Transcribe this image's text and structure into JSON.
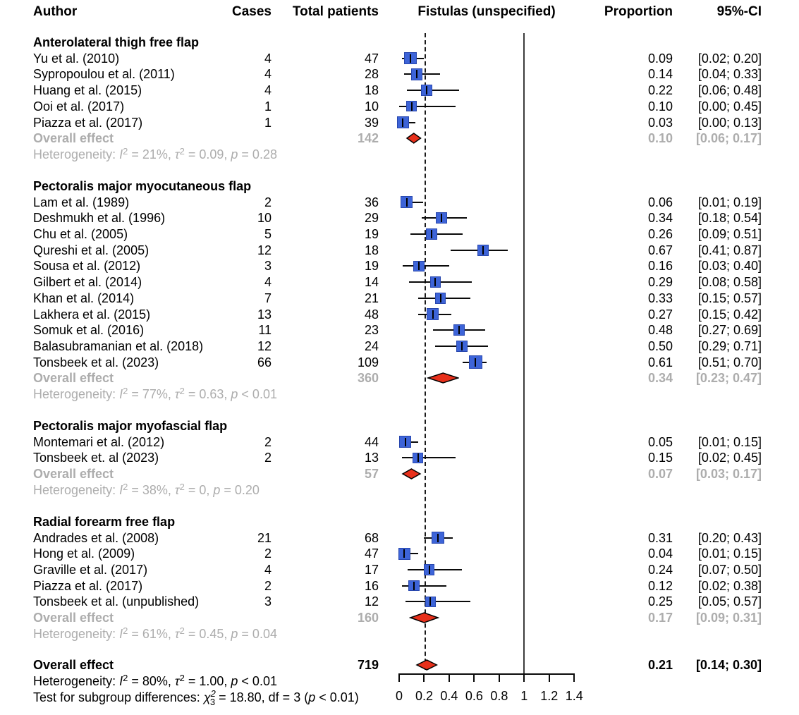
{
  "columns": {
    "author": "Author",
    "cases": "Cases",
    "total": "Total patients",
    "plot_title": "Fistulas (unspecified)",
    "proportion": "Proportion",
    "ci": "95%-CI"
  },
  "colors": {
    "square_fill": "#3D64D8",
    "square_border": "#2847AE",
    "diamond_fill": "#E8301B",
    "diamond_border": "#000000",
    "muted_text": "#adadad",
    "axis": "#0a0a0a",
    "reference_line": "#3c3c3c"
  },
  "chart_data": {
    "type": "forest",
    "title": "Fistulas (unspecified)",
    "x_axis": {
      "tick_labels": [
        "0",
        "0.2",
        "0.4",
        "0.6",
        "0.8",
        "1",
        "1.2",
        "1.4"
      ],
      "tick_values": [
        0,
        0.2,
        0.4,
        0.6,
        0.8,
        1,
        1.2,
        1.4
      ],
      "range": [
        0,
        1.4
      ],
      "dashed_line_at": 0.21,
      "solid_line_at": 1
    },
    "groups": [
      {
        "name": "Anterolateral thigh free flap",
        "studies": [
          {
            "author": "Yu et al. (2010)",
            "cases": "4",
            "total": 47,
            "proportion": 0.09,
            "ci_lower": 0.02,
            "ci_upper": 0.2,
            "proportion_label": "0.09",
            "ci_label": "[0.02; 0.20]"
          },
          {
            "author": "Sypropoulou et al. (2011)",
            "cases": "4",
            "total": 28,
            "proportion": 0.14,
            "ci_lower": 0.04,
            "ci_upper": 0.33,
            "proportion_label": "0.14",
            "ci_label": "[0.04; 0.33]"
          },
          {
            "author": "Huang et al. (2015)",
            "cases": "4",
            "total": 18,
            "proportion": 0.22,
            "ci_lower": 0.06,
            "ci_upper": 0.48,
            "proportion_label": "0.22",
            "ci_label": "[0.06; 0.48]"
          },
          {
            "author": "Ooi et al. (2017)",
            "cases": "1",
            "total": 10,
            "proportion": 0.1,
            "ci_lower": 0.0,
            "ci_upper": 0.45,
            "proportion_label": "0.10",
            "ci_label": "[0.00; 0.45]"
          },
          {
            "author": "Piazza et al. (2017)",
            "cases": "1",
            "total": 39,
            "proportion": 0.03,
            "ci_lower": 0.0,
            "ci_upper": 0.13,
            "proportion_label": "0.03",
            "ci_label": "[0.00; 0.13]"
          }
        ],
        "overall": {
          "label": "Overall effect",
          "total": "142",
          "proportion": 0.1,
          "ci_lower": 0.06,
          "ci_upper": 0.17,
          "proportion_label": "0.10",
          "ci_label": "[0.06; 0.17]"
        },
        "heterogeneity": [
          [
            "Heterogeneity: "
          ],
          [
            "I",
            "i"
          ],
          [
            "2",
            "sup"
          ],
          [
            " = 21%, "
          ],
          [
            "τ",
            "i"
          ],
          [
            "2",
            "sup"
          ],
          [
            " = 0.09, "
          ],
          [
            "p",
            "i"
          ],
          [
            " = 0.28"
          ]
        ]
      },
      {
        "name": "Pectoralis major myocutaneous flap",
        "studies": [
          {
            "author": "Lam et al. (1989)",
            "cases": "2",
            "total": 36,
            "proportion": 0.06,
            "ci_lower": 0.01,
            "ci_upper": 0.19,
            "proportion_label": "0.06",
            "ci_label": "[0.01; 0.19]"
          },
          {
            "author": "Deshmukh et al. (1996)",
            "cases": "10",
            "total": 29,
            "proportion": 0.34,
            "ci_lower": 0.18,
            "ci_upper": 0.54,
            "proportion_label": "0.34",
            "ci_label": "[0.18; 0.54]"
          },
          {
            "author": "Chu et al. (2005)",
            "cases": "5",
            "total": 19,
            "proportion": 0.26,
            "ci_lower": 0.09,
            "ci_upper": 0.51,
            "proportion_label": "0.26",
            "ci_label": "[0.09; 0.51]"
          },
          {
            "author": "Qureshi et al. (2005)",
            "cases": "12",
            "total": 18,
            "proportion": 0.67,
            "ci_lower": 0.41,
            "ci_upper": 0.87,
            "proportion_label": "0.67",
            "ci_label": "[0.41; 0.87]"
          },
          {
            "author": "Sousa et al. (2012)",
            "cases": "3",
            "total": 19,
            "proportion": 0.16,
            "ci_lower": 0.03,
            "ci_upper": 0.4,
            "proportion_label": "0.16",
            "ci_label": "[0.03; 0.40]"
          },
          {
            "author": "Gilbert et al. (2014)",
            "cases": "4",
            "total": 14,
            "proportion": 0.29,
            "ci_lower": 0.08,
            "ci_upper": 0.58,
            "proportion_label": "0.29",
            "ci_label": "[0.08; 0.58]"
          },
          {
            "author": "Khan et al. (2014)",
            "cases": "7",
            "total": 21,
            "proportion": 0.33,
            "ci_lower": 0.15,
            "ci_upper": 0.57,
            "proportion_label": "0.33",
            "ci_label": "[0.15; 0.57]"
          },
          {
            "author": "Lakhera et al. (2015)",
            "cases": "13",
            "total": 48,
            "proportion": 0.27,
            "ci_lower": 0.15,
            "ci_upper": 0.42,
            "proportion_label": "0.27",
            "ci_label": "[0.15; 0.42]"
          },
          {
            "author": "Somuk et al. (2016)",
            "cases": "11",
            "total": 23,
            "proportion": 0.48,
            "ci_lower": 0.27,
            "ci_upper": 0.69,
            "proportion_label": "0.48",
            "ci_label": "[0.27; 0.69]"
          },
          {
            "author": "Balasubramanian et al. (2018)",
            "cases": "12",
            "total": 24,
            "proportion": 0.5,
            "ci_lower": 0.29,
            "ci_upper": 0.71,
            "proportion_label": "0.50",
            "ci_label": "[0.29; 0.71]"
          },
          {
            "author": "Tonsbeek et al. (2023)",
            "cases": "66",
            "total": 109,
            "proportion": 0.61,
            "ci_lower": 0.51,
            "ci_upper": 0.7,
            "proportion_label": "0.61",
            "ci_label": "[0.51; 0.70]"
          }
        ],
        "overall": {
          "label": "Overall effect",
          "total": "360",
          "proportion": 0.34,
          "ci_lower": 0.23,
          "ci_upper": 0.47,
          "proportion_label": "0.34",
          "ci_label": "[0.23; 0.47]"
        },
        "heterogeneity": [
          [
            "Heterogeneity: "
          ],
          [
            "I",
            "i"
          ],
          [
            "2",
            "sup"
          ],
          [
            " = 77%, "
          ],
          [
            "τ",
            "i"
          ],
          [
            "2",
            "sup"
          ],
          [
            " = 0.63, "
          ],
          [
            "p",
            "i"
          ],
          [
            " < 0.01"
          ]
        ]
      },
      {
        "name": "Pectoralis major myofascial flap",
        "studies": [
          {
            "author": "Montemari et al. (2012)",
            "cases": "2",
            "total": 44,
            "proportion": 0.05,
            "ci_lower": 0.01,
            "ci_upper": 0.15,
            "proportion_label": "0.05",
            "ci_label": "[0.01; 0.15]"
          },
          {
            "author": "Tonsbeek et. al (2023)",
            "cases": "2",
            "total": 13,
            "proportion": 0.15,
            "ci_lower": 0.02,
            "ci_upper": 0.45,
            "proportion_label": "0.15",
            "ci_label": "[0.02; 0.45]"
          }
        ],
        "overall": {
          "label": "Overall effect",
          "total": "57",
          "proportion": 0.07,
          "ci_lower": 0.03,
          "ci_upper": 0.17,
          "proportion_label": "0.07",
          "ci_label": "[0.03; 0.17]"
        },
        "heterogeneity": [
          [
            "Heterogeneity: "
          ],
          [
            "I",
            "i"
          ],
          [
            "2",
            "sup"
          ],
          [
            " = 38%, "
          ],
          [
            "τ",
            "i"
          ],
          [
            "2",
            "sup"
          ],
          [
            " = 0, "
          ],
          [
            "p",
            "i"
          ],
          [
            " = 0.20"
          ]
        ]
      },
      {
        "name": "Radial forearm free flap",
        "studies": [
          {
            "author": "Andrades et al. (2008)",
            "cases": "21",
            "total": 68,
            "proportion": 0.31,
            "ci_lower": 0.2,
            "ci_upper": 0.43,
            "proportion_label": "0.31",
            "ci_label": "[0.20; 0.43]"
          },
          {
            "author": "Hong et al. (2009)",
            "cases": "2",
            "total": 47,
            "proportion": 0.04,
            "ci_lower": 0.01,
            "ci_upper": 0.15,
            "proportion_label": "0.04",
            "ci_label": "[0.01; 0.15]"
          },
          {
            "author": "Graville et al. (2017)",
            "cases": "4",
            "total": 17,
            "proportion": 0.24,
            "ci_lower": 0.07,
            "ci_upper": 0.5,
            "proportion_label": "0.24",
            "ci_label": "[0.07; 0.50]"
          },
          {
            "author": "Piazza et al. (2017)",
            "cases": "2",
            "total": 16,
            "proportion": 0.12,
            "ci_lower": 0.02,
            "ci_upper": 0.38,
            "proportion_label": "0.12",
            "ci_label": "[0.02; 0.38]"
          },
          {
            "author": "Tonsbeek et al. (unpublished)",
            "cases": "3",
            "total": 12,
            "proportion": 0.25,
            "ci_lower": 0.05,
            "ci_upper": 0.57,
            "proportion_label": "0.25",
            "ci_label": "[0.05; 0.57]"
          }
        ],
        "overall": {
          "label": "Overall effect",
          "total": "160",
          "proportion": 0.17,
          "ci_lower": 0.09,
          "ci_upper": 0.31,
          "proportion_label": "0.17",
          "ci_label": "[0.09; 0.31]"
        },
        "heterogeneity": [
          [
            "Heterogeneity: "
          ],
          [
            "I",
            "i"
          ],
          [
            "2",
            "sup"
          ],
          [
            " = 61%, "
          ],
          [
            "τ",
            "i"
          ],
          [
            "2",
            "sup"
          ],
          [
            " = 0.45, "
          ],
          [
            "p",
            "i"
          ],
          [
            " = 0.04"
          ]
        ]
      }
    ],
    "overall": {
      "label": "Overall effect",
      "total": "719",
      "proportion": 0.21,
      "ci_lower": 0.14,
      "ci_upper": 0.3,
      "proportion_label": "0.21",
      "ci_label": "[0.14; 0.30]"
    },
    "overall_heterogeneity": [
      [
        "Heterogeneity: "
      ],
      [
        "I",
        "i"
      ],
      [
        "2",
        "sup"
      ],
      [
        " = 80%, "
      ],
      [
        "τ",
        "i"
      ],
      [
        "2",
        "sup"
      ],
      [
        " = 1.00, "
      ],
      [
        "p",
        "i"
      ],
      [
        " < 0.01"
      ]
    ],
    "subgroup_test": [
      [
        "Test for subgroup differences: "
      ],
      [
        "χ",
        "i"
      ],
      [
        "2",
        "sup2"
      ],
      [
        "3",
        "sub2"
      ],
      [
        " = 18.80, df = 3 ("
      ],
      [
        "p",
        "i"
      ],
      [
        " < 0.01)"
      ]
    ]
  }
}
